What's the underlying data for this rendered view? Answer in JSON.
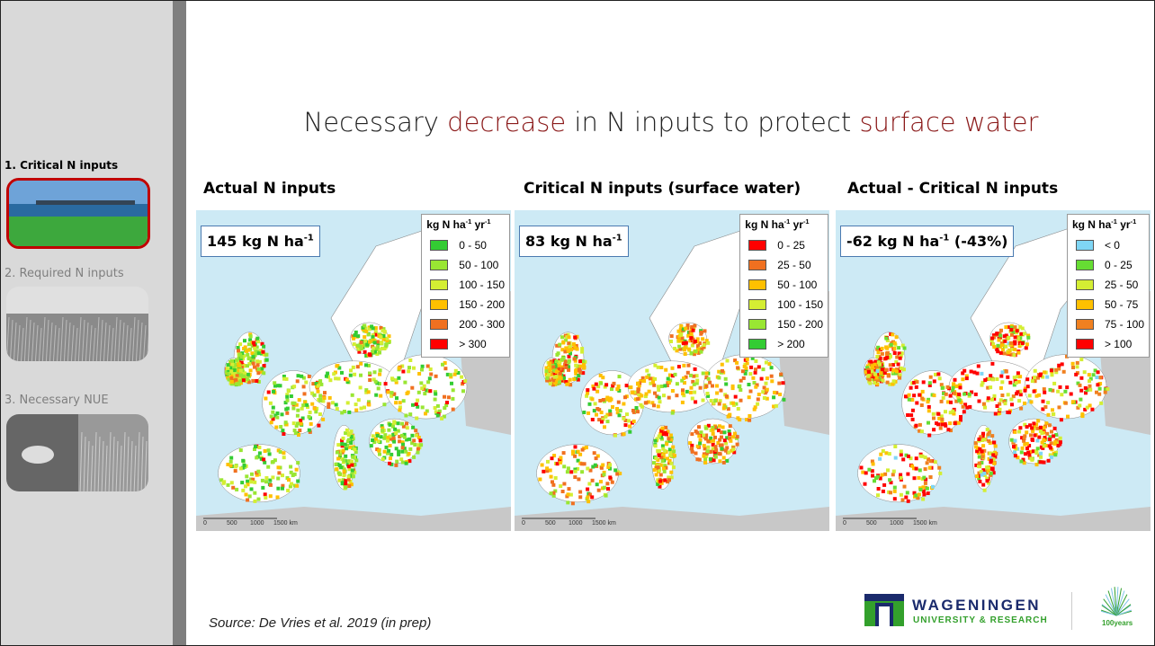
{
  "sidebar": {
    "items": [
      {
        "label": "1. Critical N inputs",
        "active": true
      },
      {
        "label": "2. Required N inputs",
        "active": false
      },
      {
        "label": "3. Necessary NUE",
        "active": false
      }
    ]
  },
  "title": [
    {
      "text": "Necessary ",
      "em": false
    },
    {
      "text": "decrease",
      "em": true
    },
    {
      "text": " in N inputs to protect ",
      "em": false
    },
    {
      "text": "surface water",
      "em": true
    }
  ],
  "maps": [
    {
      "heading": "Actual N inputs",
      "badge": [
        {
          "text": "145 kg N ha"
        },
        {
          "sup": "-1"
        }
      ],
      "legend_title": [
        {
          "text": "kg N ha"
        },
        {
          "sup": "-1"
        },
        {
          "text": " yr"
        },
        {
          "sup": "-1"
        }
      ],
      "legend": [
        {
          "label": "0 - 50",
          "color": "#33cc33"
        },
        {
          "label": "50 - 100",
          "color": "#99e633"
        },
        {
          "label": "100 - 150",
          "color": "#d4ee33"
        },
        {
          "label": "150 - 200",
          "color": "#ffc000"
        },
        {
          "label": "200 - 300",
          "color": "#f07020"
        },
        {
          "label": "> 300",
          "color": "#ff0000"
        }
      ]
    },
    {
      "heading": "Critical N inputs (surface water)",
      "badge": [
        {
          "text": "83 kg N ha"
        },
        {
          "sup": "-1"
        }
      ],
      "legend_title": [
        {
          "text": "kg N ha"
        },
        {
          "sup": "-1"
        },
        {
          "text": " yr"
        },
        {
          "sup": "-1"
        }
      ],
      "legend": [
        {
          "label": "0 - 25",
          "color": "#ff0000"
        },
        {
          "label": "25 - 50",
          "color": "#f07020"
        },
        {
          "label": "50 - 100",
          "color": "#ffc000"
        },
        {
          "label": "100 - 150",
          "color": "#d4ee33"
        },
        {
          "label": "150 - 200",
          "color": "#99e633"
        },
        {
          "label": "> 200",
          "color": "#33cc33"
        }
      ]
    },
    {
      "heading": "Actual - Critical N inputs",
      "badge": [
        {
          "text": "-62 kg N ha"
        },
        {
          "sup": "-1"
        },
        {
          "text": " (-43%)"
        }
      ],
      "legend_title": [
        {
          "text": "kg N ha"
        },
        {
          "sup": "-1"
        },
        {
          "text": " yr"
        },
        {
          "sup": "-1"
        }
      ],
      "legend": [
        {
          "label": "< 0",
          "color": "#7fd6f5"
        },
        {
          "label": "0 - 25",
          "color": "#66dd33"
        },
        {
          "label": "25 - 50",
          "color": "#d4ee33"
        },
        {
          "label": "50 - 75",
          "color": "#ffc000"
        },
        {
          "label": "75 - 100",
          "color": "#f08020"
        },
        {
          "label": "> 100",
          "color": "#ff0000"
        }
      ]
    }
  ],
  "scale_labels": [
    "0",
    "500",
    "1000",
    "1500 km"
  ],
  "source": "Source: De Vries et al. 2019 (in prep)",
  "logo": {
    "name": "WAGENINGEN",
    "subtitle": "UNIVERSITY & RESEARCH",
    "badge": "100years"
  }
}
